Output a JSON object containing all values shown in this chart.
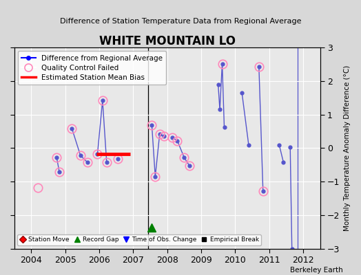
{
  "title": "WHITE MOUNTAIN LO",
  "subtitle": "Difference of Station Temperature Data from Regional Average",
  "ylabel": "Monthly Temperature Anomaly Difference (°C)",
  "xlim": [
    2003.5,
    2012.5
  ],
  "ylim": [
    -3,
    3
  ],
  "yticks": [
    -3,
    -2,
    -1,
    0,
    1,
    2,
    3
  ],
  "xticks": [
    2004,
    2005,
    2006,
    2007,
    2008,
    2009,
    2010,
    2011,
    2012
  ],
  "bg_color": "#e8e8e8",
  "fig_color": "#d8d8d8",
  "line_color": "#5555cc",
  "segments": [
    [
      [
        2004.75,
        -0.28
      ],
      [
        2004.83,
        -0.72
      ]
    ],
    [
      [
        2005.2,
        0.58
      ],
      [
        2005.45,
        -0.22
      ],
      [
        2005.65,
        -0.42
      ]
    ],
    [
      [
        2005.95,
        -0.18
      ],
      [
        2006.1,
        1.42
      ],
      [
        2006.22,
        -0.42
      ]
    ],
    [
      [
        2006.55,
        -0.32
      ]
    ],
    [
      [
        2007.55,
        0.68
      ],
      [
        2007.65,
        -0.85
      ],
      [
        2007.78,
        0.42
      ],
      [
        2007.9,
        0.35
      ]
    ],
    [
      [
        2008.15,
        0.32
      ],
      [
        2008.3,
        0.22
      ],
      [
        2008.5,
        -0.28
      ],
      [
        2008.65,
        -0.52
      ]
    ],
    [
      [
        2009.5,
        1.9
      ],
      [
        2009.55,
        1.15
      ],
      [
        2009.62,
        2.52
      ],
      [
        2009.68,
        0.62
      ]
    ],
    [
      [
        2010.2,
        1.65
      ],
      [
        2010.4,
        0.08
      ]
    ],
    [
      [
        2010.7,
        2.42
      ],
      [
        2010.82,
        -1.28
      ]
    ],
    [
      [
        2011.3,
        0.08
      ],
      [
        2011.42,
        -0.42
      ]
    ],
    [
      [
        2011.62,
        0.02
      ],
      [
        2011.67,
        -3.0
      ]
    ]
  ],
  "qc_failed": [
    [
      2004.75,
      -0.28
    ],
    [
      2004.83,
      -0.72
    ],
    [
      2005.2,
      0.58
    ],
    [
      2005.45,
      -0.22
    ],
    [
      2005.65,
      -0.42
    ],
    [
      2005.95,
      -0.18
    ],
    [
      2006.1,
      1.42
    ],
    [
      2006.22,
      -0.42
    ],
    [
      2006.55,
      -0.32
    ],
    [
      2007.55,
      0.68
    ],
    [
      2007.65,
      -0.85
    ],
    [
      2007.78,
      0.42
    ],
    [
      2007.9,
      0.35
    ],
    [
      2008.15,
      0.32
    ],
    [
      2008.3,
      0.22
    ],
    [
      2008.5,
      -0.28
    ],
    [
      2008.65,
      -0.52
    ],
    [
      2009.62,
      2.52
    ],
    [
      2010.7,
      2.42
    ],
    [
      2010.82,
      -1.28
    ]
  ],
  "lone_qc": [
    2004.2,
    -1.18
  ],
  "bias_x1": 2005.92,
  "bias_x2": 2006.92,
  "bias_y": -0.18,
  "vertical_line_x": 2007.45,
  "vertical_line2_x": 2011.83,
  "record_gap_x": 2007.55,
  "record_gap_y": -2.38,
  "footnote": "Berkeley Earth"
}
